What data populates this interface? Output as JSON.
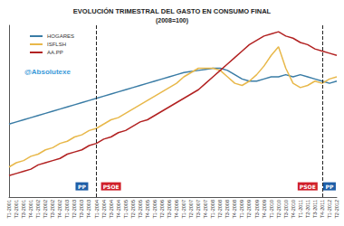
{
  "chart_data": {
    "type": "line",
    "title": "EVOLUCIÓN TRIMESTRAL DEL GASTO EN CONSUMO FINAL",
    "subtitle": "(2008=100)",
    "source": "@Absolutexe",
    "categories": [
      "T1-2001",
      "T2-2001",
      "T3-2001",
      "T4-2001",
      "T1-2002",
      "T2-2002",
      "T3-2002",
      "T4-2002",
      "T1-2003",
      "T2-2003",
      "T3-2003",
      "T4-2003",
      "T1-2004",
      "T2-2004",
      "T3-2004",
      "T4-2004",
      "T1-2005",
      "T2-2005",
      "T3-2005",
      "T4-2005",
      "T1-2006",
      "T2-2006",
      "T3-2006",
      "T4-2006",
      "T1-2007",
      "T2-2007",
      "T3-2007",
      "T4-2007",
      "T1-2008",
      "T2-2008",
      "T3-2008",
      "T4-2008",
      "T1-2009",
      "T2-2009",
      "T3-2009",
      "T4-2009",
      "T1-2010",
      "T2-2010",
      "T3-2010",
      "T4-2010",
      "T1-2011",
      "T2-2011",
      "T3-2011",
      "T4-2011",
      "T1-2012",
      "T2-2012"
    ],
    "series": [
      {
        "name": "HOGARES",
        "color": "#3a7ca5",
        "values": [
          74,
          75,
          76,
          77,
          78,
          79,
          80,
          81,
          82,
          83,
          84,
          85,
          86,
          87,
          88,
          89,
          90,
          91,
          92,
          93,
          94,
          95,
          96,
          97,
          98,
          98.5,
          99,
          99.5,
          100,
          100,
          99,
          97,
          95,
          94,
          94,
          95,
          96,
          96,
          97,
          96,
          97,
          96,
          95,
          94,
          93,
          94
        ]
      },
      {
        "name": "ISFLSH",
        "color": "#e8b84a",
        "values": [
          54,
          56,
          57,
          59,
          60,
          62,
          63,
          65,
          66,
          68,
          69,
          71,
          72,
          74,
          76,
          77,
          79,
          81,
          83,
          85,
          87,
          89,
          91,
          93,
          96,
          98,
          100,
          100,
          100,
          99,
          96,
          93,
          92,
          94,
          97,
          101,
          106,
          110,
          100,
          93,
          91,
          92,
          94,
          93,
          95,
          96
        ]
      },
      {
        "name": "AA.PP",
        "color": "#b22222",
        "values": [
          50,
          51,
          52,
          53,
          55,
          56,
          57,
          58,
          60,
          61,
          62,
          64,
          65,
          67,
          68,
          70,
          71,
          73,
          75,
          76,
          78,
          80,
          82,
          84,
          86,
          88,
          90,
          93,
          96,
          99,
          102,
          105,
          108,
          111,
          113,
          115,
          116,
          117,
          115,
          114,
          112,
          111,
          109,
          108,
          107,
          106
        ]
      }
    ],
    "vlines": [
      "T1-2004",
      "T4-2011"
    ],
    "annotations": [
      {
        "text": "PP",
        "x": "T3-2003",
        "y": 45,
        "color": "#1f5fa8"
      },
      {
        "text": "PSOE",
        "x": "T3-2004",
        "y": 45,
        "color": "#d0202a"
      },
      {
        "text": "PSOE",
        "x": "T2-2011",
        "y": 45,
        "color": "#d0202a"
      },
      {
        "text": "PP",
        "x": "T1-2012",
        "y": 45,
        "color": "#1f5fa8"
      }
    ],
    "ylim": [
      40,
      120
    ],
    "tick_labels": "x",
    "grid": false,
    "legend": "upper left"
  }
}
